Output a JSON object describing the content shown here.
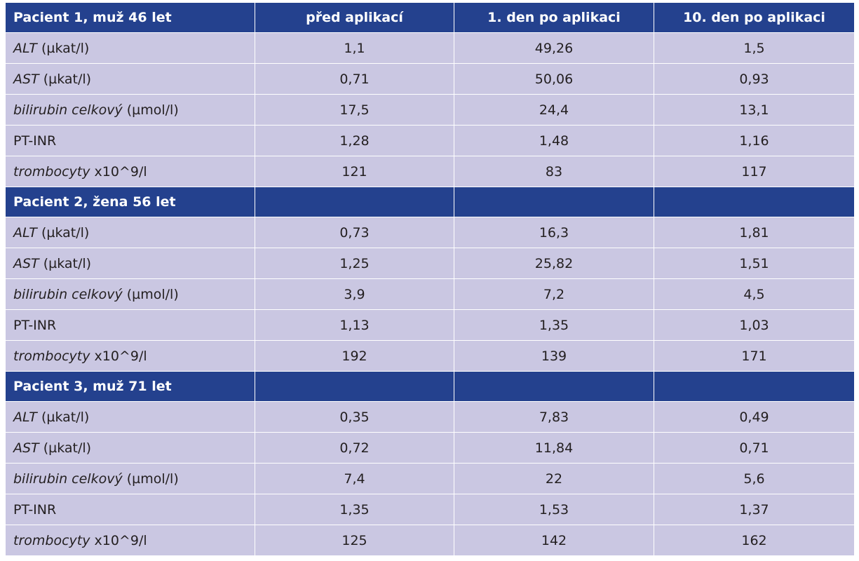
{
  "table": {
    "column_headers": [
      "před aplikací",
      "1. den po aplikaci",
      "10. den po aplikaci"
    ],
    "groups": [
      {
        "title": "Pacient 1, muž 46 let",
        "rows": [
          {
            "name": "ALT",
            "unit": " (µkat/l)",
            "values": [
              "1,1",
              "49,26",
              "1,5"
            ]
          },
          {
            "name": "AST",
            "unit": " (µkat/l)",
            "values": [
              "0,71",
              "50,06",
              "0,93"
            ]
          },
          {
            "name": "bilirubin celkový",
            "unit": " (µmol/l)",
            "values": [
              "17,5",
              "24,4",
              "13,1"
            ]
          },
          {
            "name": "",
            "unit": "PT-INR",
            "values": [
              "1,28",
              "1,48",
              "1,16"
            ]
          },
          {
            "name": "trombocyty",
            "unit": " x10^9/l",
            "values": [
              "121",
              "83",
              "117"
            ]
          }
        ]
      },
      {
        "title": "Pacient 2, žena 56 let",
        "rows": [
          {
            "name": "ALT",
            "unit": " (µkat/l)",
            "values": [
              "0,73",
              "16,3",
              "1,81"
            ]
          },
          {
            "name": "AST",
            "unit": " (µkat/l)",
            "values": [
              "1,25",
              "25,82",
              "1,51"
            ]
          },
          {
            "name": "bilirubin celkový",
            "unit": " (µmol/l)",
            "values": [
              "3,9",
              "7,2",
              "4,5"
            ]
          },
          {
            "name": "",
            "unit": "PT-INR",
            "values": [
              "1,13",
              "1,35",
              "1,03"
            ]
          },
          {
            "name": "trombocyty",
            "unit": " x10^9/l",
            "values": [
              "192",
              "139",
              "171"
            ]
          }
        ]
      },
      {
        "title": "Pacient 3, muž 71 let",
        "rows": [
          {
            "name": "ALT",
            "unit": " (µkat/l)",
            "values": [
              "0,35",
              "7,83",
              "0,49"
            ]
          },
          {
            "name": "AST",
            "unit": " (µkat/l)",
            "values": [
              "0,72",
              "11,84",
              "0,71"
            ]
          },
          {
            "name": "bilirubin celkový",
            "unit": " (µmol/l)",
            "values": [
              "7,4",
              "22",
              "5,6"
            ]
          },
          {
            "name": "",
            "unit": "PT-INR",
            "values": [
              "1,35",
              "1,53",
              "1,37"
            ]
          },
          {
            "name": "trombocyty",
            "unit": " x10^9/l",
            "values": [
              "125",
              "142",
              "162"
            ]
          }
        ]
      }
    ]
  }
}
